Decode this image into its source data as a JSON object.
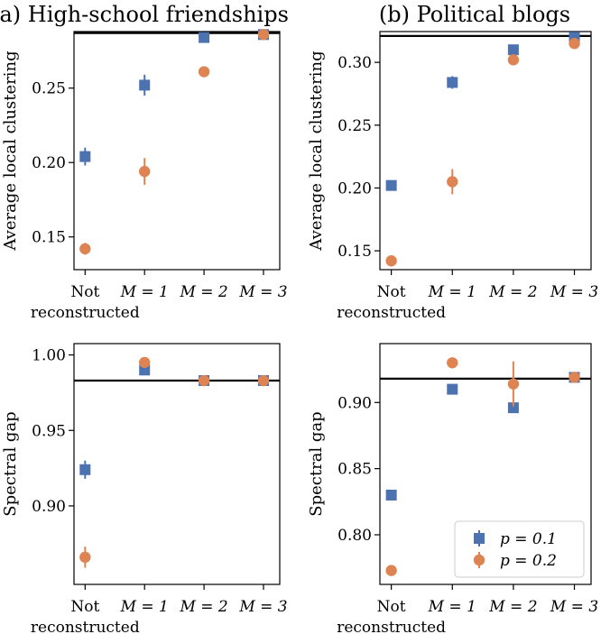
{
  "figure": {
    "colors": {
      "p01": "#4c72b0",
      "p02": "#dd8452",
      "reference": "#000000"
    },
    "legend": {
      "placement": "lower-right",
      "entries": [
        "p = 0.1",
        "p = 0.2"
      ]
    }
  },
  "chart_data": [
    {
      "type": "scatter",
      "panel": "top-left",
      "title": "(a) High-school friendships",
      "ylabel": "Average local clustering",
      "categories": [
        "Not reconstructed",
        "M = 1",
        "M = 2",
        "M = 3"
      ],
      "ylim": [
        0.128,
        0.288
      ],
      "yticks": [
        0.15,
        0.2,
        0.25
      ],
      "ytick_labels": [
        "0.15",
        "0.20",
        "0.25"
      ],
      "reference": 0.287,
      "series": [
        {
          "name": "p = 0.1",
          "values": [
            0.204,
            0.252,
            0.284,
            0.286
          ],
          "errors": [
            0.006,
            0.007,
            0.002,
            0.001
          ]
        },
        {
          "name": "p = 0.2",
          "values": [
            0.142,
            0.194,
            0.261,
            0.286
          ],
          "errors": [
            0.004,
            0.009,
            0.001,
            0.001
          ]
        }
      ]
    },
    {
      "type": "scatter",
      "panel": "top-right",
      "title": "(b) Political blogs",
      "ylabel": "Average local clustering",
      "categories": [
        "Not reconstructed",
        "M = 1",
        "M = 2",
        "M = 3"
      ],
      "ylim": [
        0.135,
        0.3245
      ],
      "yticks": [
        0.15,
        0.2,
        0.25,
        0.3
      ],
      "ytick_labels": [
        "0.15",
        "0.20",
        "0.25",
        "0.30"
      ],
      "reference": 0.321,
      "series": [
        {
          "name": "p = 0.1",
          "values": [
            0.202,
            0.284,
            0.31,
            0.32
          ],
          "errors": [
            0.002,
            0.005,
            0.003,
            0.002
          ]
        },
        {
          "name": "p = 0.2",
          "values": [
            0.142,
            0.205,
            0.302,
            0.315
          ],
          "errors": [
            0.002,
            0.01,
            0.002,
            0.002
          ]
        }
      ]
    },
    {
      "type": "scatter",
      "panel": "bottom-left",
      "title": "",
      "ylabel": "Spectral gap",
      "categories": [
        "Not reconstructed",
        "M = 1",
        "M = 2",
        "M = 3"
      ],
      "ylim": [
        0.848,
        1.0075
      ],
      "yticks": [
        0.9,
        0.95,
        1.0
      ],
      "ytick_labels": [
        "0.90",
        "0.95",
        "1.00"
      ],
      "reference": 0.983,
      "series": [
        {
          "name": "p = 0.1",
          "values": [
            0.924,
            0.99,
            0.983,
            0.983
          ],
          "errors": [
            0.006,
            0.003,
            0.002,
            0.001
          ]
        },
        {
          "name": "p = 0.2",
          "values": [
            0.866,
            0.995,
            0.983,
            0.983
          ],
          "errors": [
            0.007,
            0.002,
            0.001,
            0.001
          ]
        }
      ]
    },
    {
      "type": "scatter",
      "panel": "bottom-right",
      "title": "",
      "ylabel": "Spectral gap",
      "categories": [
        "Not reconstructed",
        "M = 1",
        "M = 2",
        "M = 3"
      ],
      "ylim": [
        0.7625,
        0.9445
      ],
      "yticks": [
        0.8,
        0.85,
        0.9
      ],
      "ytick_labels": [
        "0.80",
        "0.85",
        "0.90"
      ],
      "reference": 0.918,
      "series": [
        {
          "name": "p = 0.1",
          "values": [
            0.83,
            0.91,
            0.896,
            0.919
          ],
          "errors": [
            0.002,
            0.002,
            0.003,
            0.002
          ]
        },
        {
          "name": "p = 0.2",
          "values": [
            0.773,
            0.93,
            0.914,
            0.919
          ],
          "errors": [
            0.002,
            0.002,
            0.017,
            0.003
          ]
        }
      ]
    }
  ]
}
